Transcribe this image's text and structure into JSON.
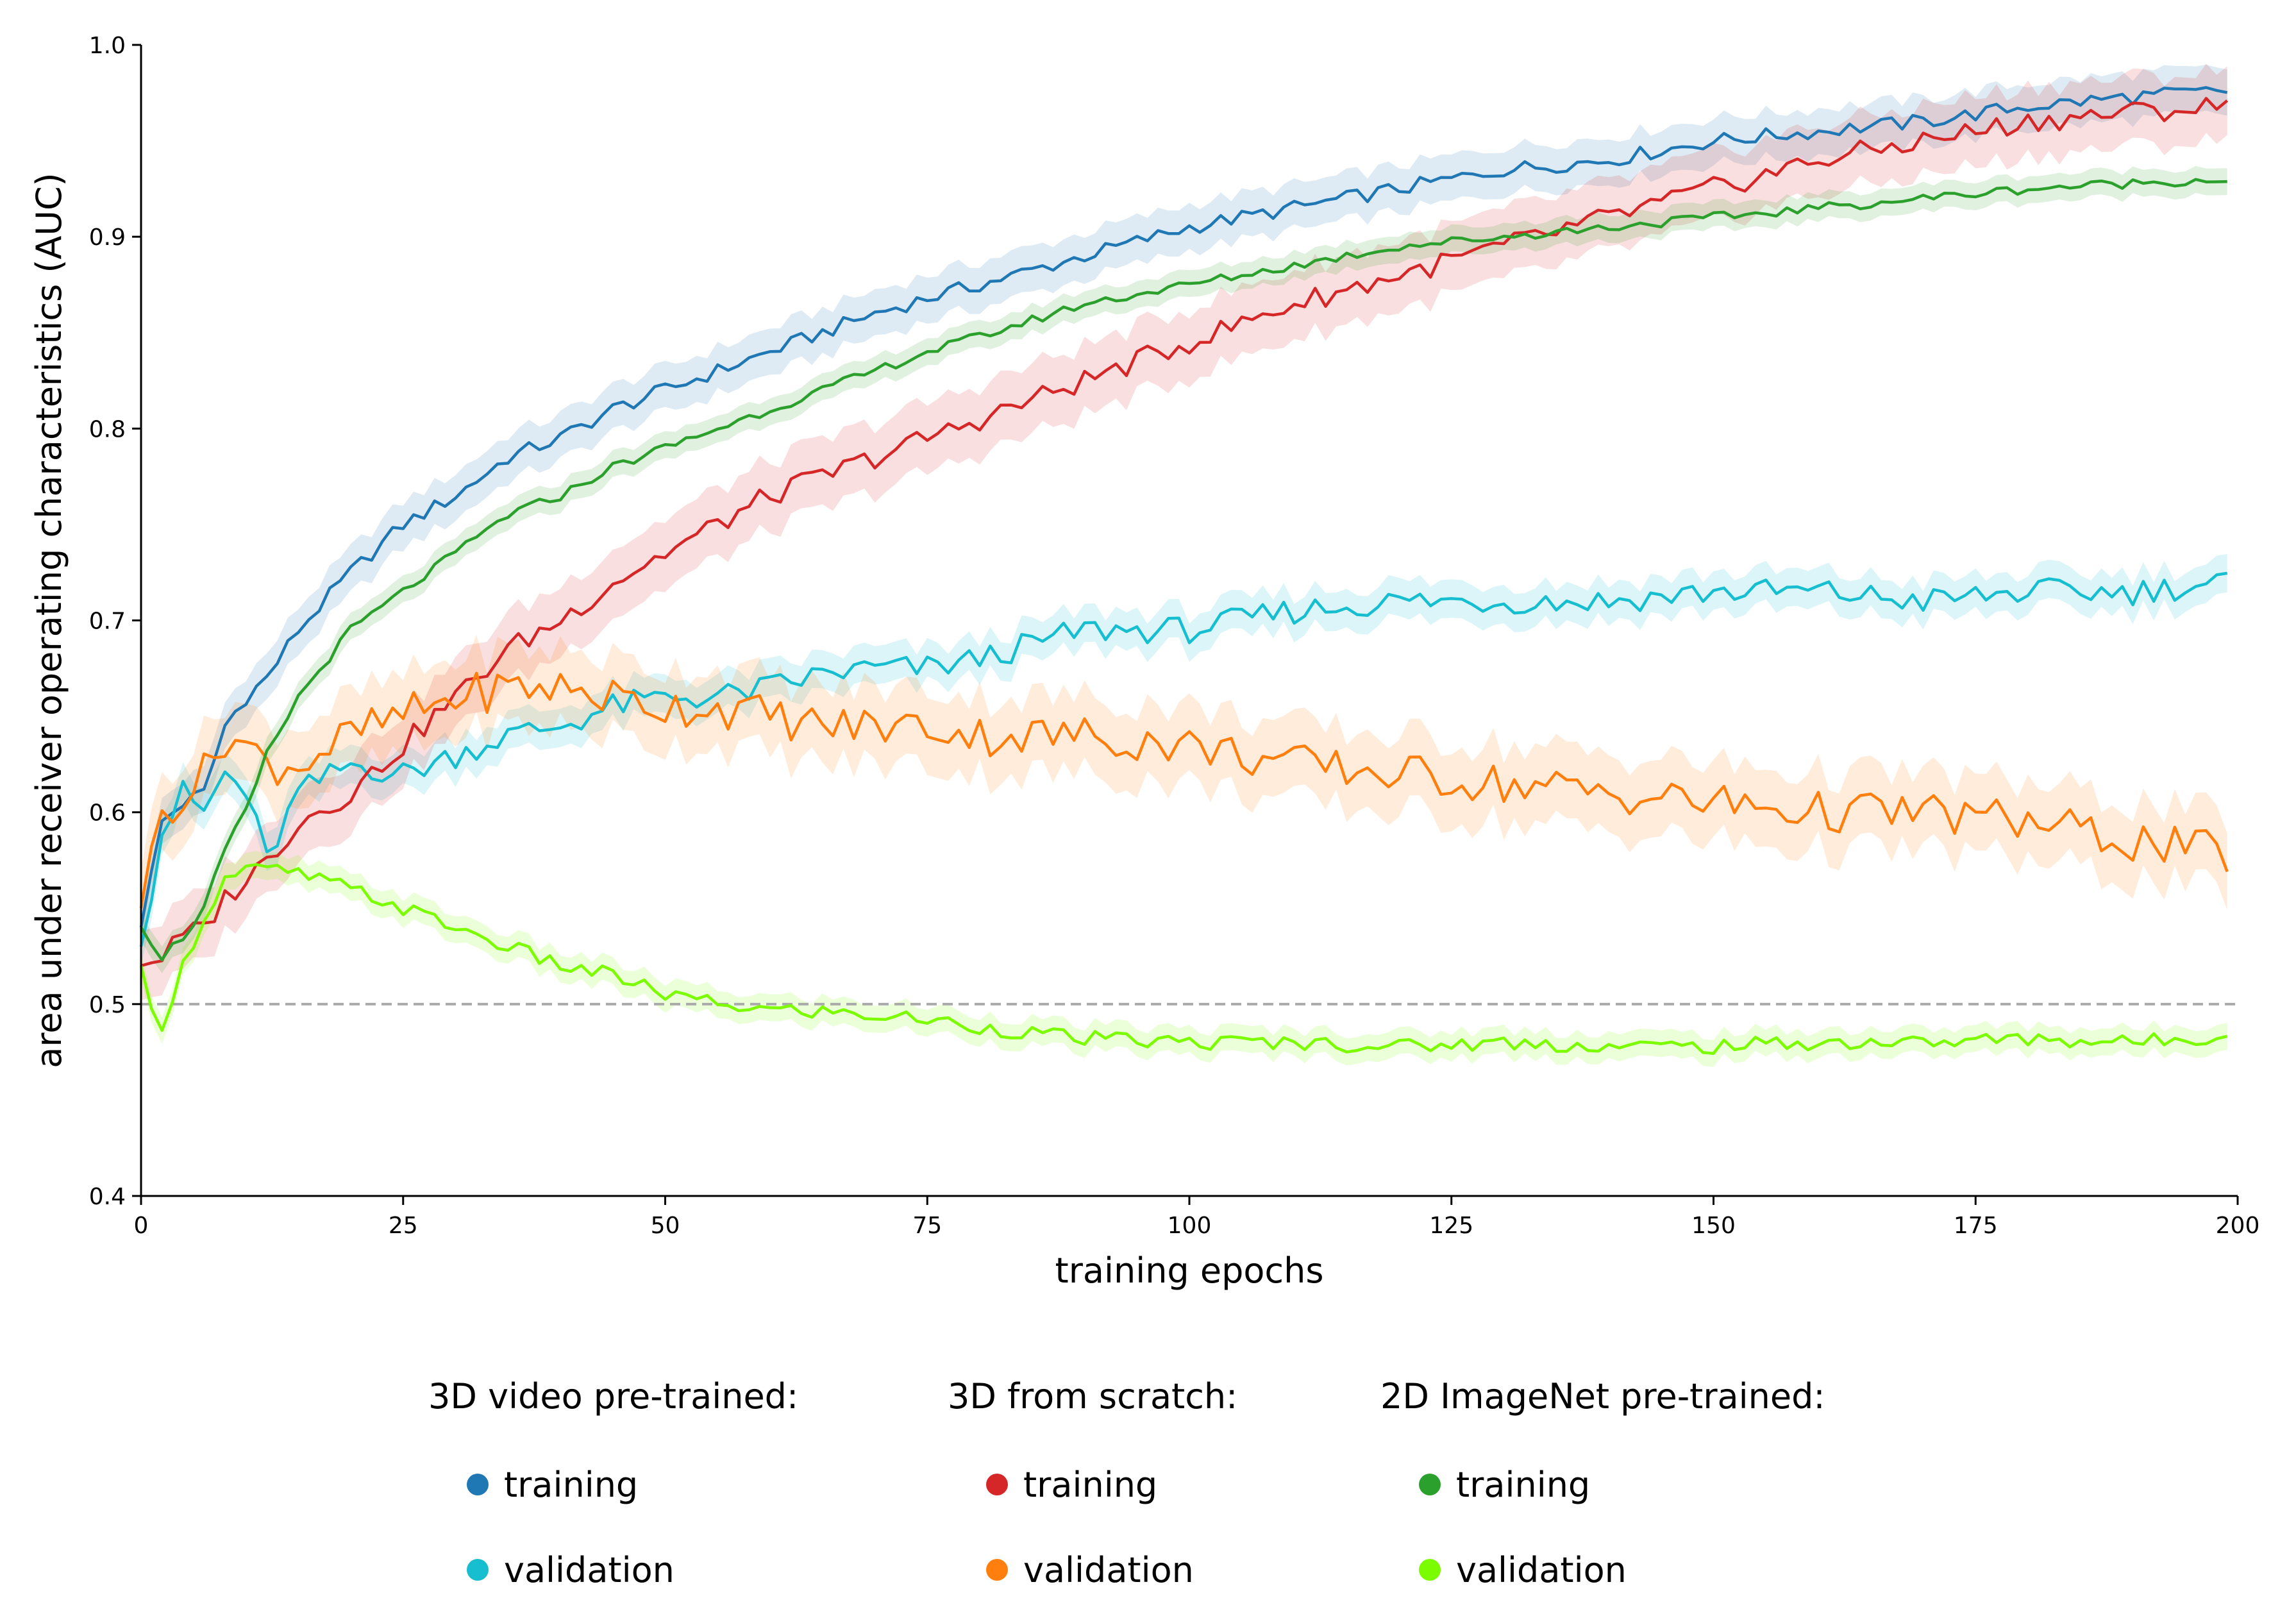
{
  "chart_data": {
    "type": "line",
    "title": "",
    "xlabel": "training epochs",
    "ylabel": "area under receiver operating characteristics (AUC)",
    "xlim": [
      0,
      200
    ],
    "ylim": [
      0.4,
      1.0
    ],
    "xticks": [
      0,
      25,
      50,
      75,
      100,
      125,
      150,
      175,
      200
    ],
    "xtick_labels": [
      "0",
      "25",
      "50",
      "75",
      "100",
      "125",
      "150",
      "175",
      "200"
    ],
    "yticks": [
      0.4,
      0.5,
      0.6,
      0.7,
      0.8,
      0.9,
      1.0
    ],
    "ytick_labels": [
      "0.4",
      "0.5",
      "0.6",
      "0.7",
      "0.8",
      "0.9",
      "1.0"
    ],
    "grid": false,
    "shaded_bands": true,
    "reference_line": {
      "y": 0.5,
      "style": "dashed",
      "color": "#aaaaaa"
    },
    "legend": {
      "placement": "bottom-center",
      "groups": [
        {
          "title": "3D video pre-trained:",
          "entries": [
            {
              "label": "training",
              "series": 0
            },
            {
              "label": "validation",
              "series": 1
            }
          ]
        },
        {
          "title": "3D from scratch:",
          "entries": [
            {
              "label": "training",
              "series": 2
            },
            {
              "label": "validation",
              "series": 3
            }
          ]
        },
        {
          "title": "2D ImageNet pre-trained:",
          "entries": [
            {
              "label": "training",
              "series": 4
            },
            {
              "label": "validation",
              "series": 5
            }
          ]
        }
      ]
    },
    "series": [
      {
        "name": "3D video pre-trained: training",
        "color": "#1f77b4",
        "band_halfwidth": 0.012,
        "x": [
          0,
          2,
          4,
          6,
          8,
          10,
          12,
          15,
          20,
          25,
          30,
          35,
          40,
          45,
          50,
          55,
          60,
          65,
          70,
          75,
          80,
          90,
          100,
          110,
          120,
          130,
          140,
          150,
          160,
          170,
          180,
          190,
          199
        ],
        "y": [
          0.54,
          0.595,
          0.605,
          0.61,
          0.645,
          0.66,
          0.67,
          0.695,
          0.725,
          0.75,
          0.765,
          0.785,
          0.795,
          0.81,
          0.82,
          0.83,
          0.84,
          0.85,
          0.86,
          0.868,
          0.875,
          0.89,
          0.905,
          0.915,
          0.925,
          0.935,
          0.94,
          0.95,
          0.955,
          0.96,
          0.968,
          0.973,
          0.976
        ]
      },
      {
        "name": "3D video pre-trained: validation",
        "color": "#17becf",
        "band_halfwidth": 0.01,
        "x": [
          0,
          2,
          4,
          6,
          8,
          10,
          12,
          15,
          20,
          25,
          30,
          35,
          40,
          45,
          50,
          55,
          60,
          65,
          70,
          75,
          80,
          90,
          100,
          110,
          120,
          130,
          140,
          150,
          160,
          170,
          180,
          190,
          199
        ],
        "y": [
          0.53,
          0.59,
          0.61,
          0.6,
          0.62,
          0.61,
          0.575,
          0.61,
          0.625,
          0.62,
          0.63,
          0.64,
          0.645,
          0.655,
          0.66,
          0.66,
          0.665,
          0.672,
          0.675,
          0.675,
          0.68,
          0.695,
          0.695,
          0.705,
          0.71,
          0.71,
          0.71,
          0.715,
          0.715,
          0.71,
          0.715,
          0.715,
          0.72
        ]
      },
      {
        "name": "3D from scratch: training",
        "color": "#d62728",
        "band_halfwidth": 0.018,
        "x": [
          0,
          2,
          4,
          6,
          8,
          10,
          12,
          15,
          20,
          25,
          30,
          35,
          40,
          45,
          50,
          55,
          60,
          65,
          70,
          75,
          80,
          90,
          100,
          110,
          120,
          130,
          140,
          150,
          160,
          170,
          180,
          190,
          199
        ],
        "y": [
          0.52,
          0.525,
          0.535,
          0.54,
          0.555,
          0.565,
          0.575,
          0.595,
          0.61,
          0.635,
          0.66,
          0.685,
          0.7,
          0.72,
          0.735,
          0.75,
          0.765,
          0.775,
          0.785,
          0.795,
          0.805,
          0.825,
          0.845,
          0.865,
          0.88,
          0.895,
          0.91,
          0.925,
          0.94,
          0.95,
          0.96,
          0.965,
          0.968
        ]
      },
      {
        "name": "3D from scratch: validation",
        "color": "#ff7f0e",
        "band_halfwidth": 0.02,
        "x": [
          0,
          2,
          4,
          6,
          8,
          10,
          12,
          15,
          20,
          25,
          30,
          35,
          40,
          45,
          50,
          55,
          60,
          65,
          70,
          75,
          80,
          90,
          100,
          110,
          120,
          130,
          140,
          150,
          160,
          170,
          180,
          190,
          199
        ],
        "y": [
          0.55,
          0.6,
          0.61,
          0.62,
          0.64,
          0.635,
          0.625,
          0.625,
          0.64,
          0.65,
          0.66,
          0.665,
          0.665,
          0.66,
          0.655,
          0.655,
          0.65,
          0.645,
          0.645,
          0.645,
          0.64,
          0.64,
          0.635,
          0.625,
          0.62,
          0.615,
          0.61,
          0.605,
          0.6,
          0.6,
          0.595,
          0.585,
          0.578
        ]
      },
      {
        "name": "2D ImageNet pre-trained: training",
        "color": "#2ca02c",
        "band_halfwidth": 0.007,
        "x": [
          0,
          2,
          4,
          6,
          8,
          10,
          12,
          15,
          20,
          25,
          30,
          35,
          40,
          45,
          50,
          55,
          60,
          65,
          70,
          75,
          80,
          90,
          100,
          110,
          120,
          130,
          140,
          150,
          160,
          170,
          180,
          190,
          199
        ],
        "y": [
          0.54,
          0.525,
          0.535,
          0.55,
          0.58,
          0.6,
          0.63,
          0.66,
          0.695,
          0.715,
          0.735,
          0.755,
          0.765,
          0.78,
          0.79,
          0.8,
          0.81,
          0.82,
          0.83,
          0.84,
          0.848,
          0.865,
          0.875,
          0.885,
          0.895,
          0.9,
          0.905,
          0.91,
          0.915,
          0.92,
          0.925,
          0.928,
          0.93
        ]
      },
      {
        "name": "2D ImageNet pre-trained: validation",
        "color": "#7cfc00",
        "band_halfwidth": 0.007,
        "x": [
          0,
          1,
          2,
          4,
          6,
          8,
          10,
          12,
          15,
          20,
          25,
          30,
          35,
          40,
          45,
          50,
          55,
          60,
          65,
          70,
          75,
          80,
          90,
          100,
          110,
          120,
          130,
          140,
          150,
          160,
          170,
          180,
          190,
          199
        ],
        "y": [
          0.52,
          0.495,
          0.49,
          0.52,
          0.545,
          0.565,
          0.57,
          0.57,
          0.568,
          0.56,
          0.55,
          0.54,
          0.53,
          0.52,
          0.515,
          0.505,
          0.5,
          0.497,
          0.496,
          0.494,
          0.492,
          0.488,
          0.482,
          0.48,
          0.48,
          0.478,
          0.48,
          0.478,
          0.478,
          0.48,
          0.48,
          0.482,
          0.48,
          0.484
        ]
      }
    ]
  }
}
